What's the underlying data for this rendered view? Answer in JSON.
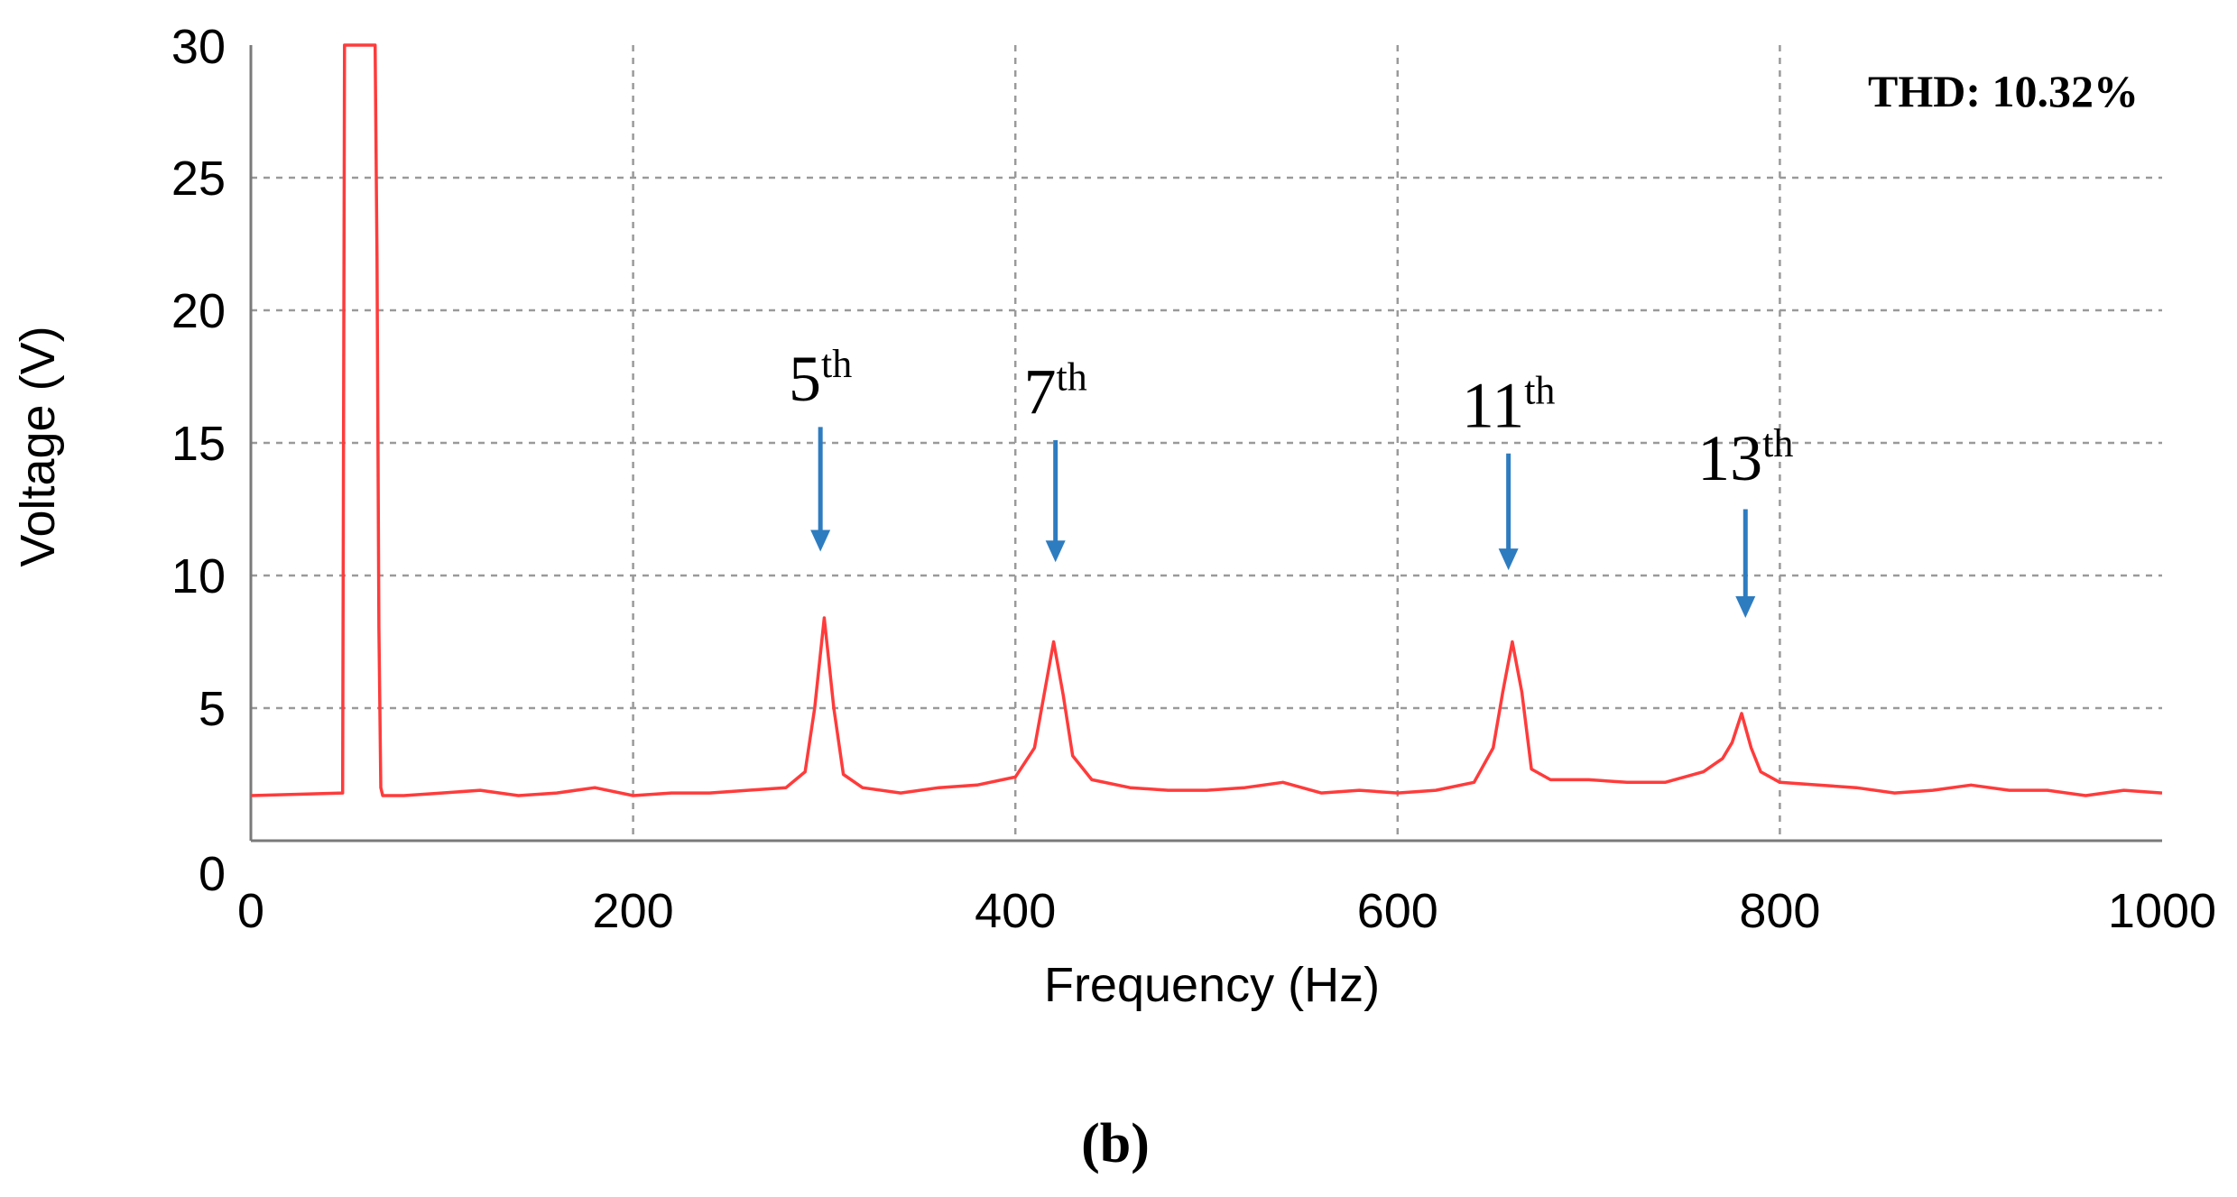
{
  "chart_data": {
    "type": "line",
    "title": "",
    "xlabel": "Frequency (Hz)",
    "ylabel": "Voltage (V)",
    "xlim": [
      0,
      1000
    ],
    "ylim": [
      0,
      30
    ],
    "x_ticks": [
      "0",
      "200",
      "400",
      "600",
      "800",
      "1000"
    ],
    "y_ticks": [
      "0",
      "5",
      "10",
      "15",
      "20",
      "25",
      "30"
    ],
    "grid": true,
    "grid_style": "dashed",
    "legend": "none",
    "thd_label": "THD: 10.32%",
    "panel_label": "(b)",
    "series": [
      {
        "color": "#ff3b3b",
        "x": [
          0,
          48,
          49,
          50,
          51,
          64,
          65,
          66,
          67,
          68,
          69,
          70,
          80,
          100,
          120,
          140,
          160,
          180,
          200,
          220,
          240,
          260,
          280,
          290,
          295,
          300,
          305,
          310,
          320,
          340,
          360,
          380,
          400,
          410,
          415,
          420,
          425,
          430,
          440,
          460,
          480,
          500,
          520,
          540,
          560,
          580,
          600,
          620,
          640,
          650,
          655,
          660,
          665,
          670,
          680,
          700,
          720,
          740,
          760,
          770,
          775,
          780,
          785,
          790,
          800,
          820,
          840,
          860,
          880,
          900,
          920,
          940,
          960,
          980,
          1000
        ],
        "y": [
          1.7,
          1.8,
          30,
          30,
          30,
          30,
          30,
          22,
          8,
          2,
          1.7,
          1.7,
          1.7,
          1.8,
          1.9,
          1.7,
          1.8,
          2.0,
          1.7,
          1.8,
          1.8,
          1.9,
          2.0,
          2.6,
          5.0,
          8.4,
          5.0,
          2.5,
          2.0,
          1.8,
          2.0,
          2.1,
          2.4,
          3.5,
          5.5,
          7.5,
          5.5,
          3.2,
          2.3,
          2.0,
          1.9,
          1.9,
          2.0,
          2.2,
          1.8,
          1.9,
          1.8,
          1.9,
          2.2,
          3.5,
          5.6,
          7.5,
          5.6,
          2.7,
          2.3,
          2.3,
          2.2,
          2.2,
          2.6,
          3.1,
          3.7,
          4.8,
          3.5,
          2.6,
          2.2,
          2.1,
          2.0,
          1.8,
          1.9,
          2.1,
          1.9,
          1.9,
          1.7,
          1.9,
          1.8
        ]
      }
    ],
    "annotations": [
      {
        "base": "5",
        "sup": "th",
        "x": 298,
        "arrow_top": 15.6,
        "arrow_tip": 10.9,
        "label_y": 16.6
      },
      {
        "base": "7",
        "sup": "th",
        "x": 421,
        "arrow_top": 15.1,
        "arrow_tip": 10.5,
        "label_y": 16.1
      },
      {
        "base": "11",
        "sup": "th",
        "x": 658,
        "arrow_top": 14.6,
        "arrow_tip": 10.2,
        "label_y": 15.6
      },
      {
        "base": "13",
        "sup": "th",
        "x": 782,
        "arrow_top": 12.5,
        "arrow_tip": 8.4,
        "label_y": 13.6
      }
    ],
    "annotation_color": "#2e7cc0"
  }
}
